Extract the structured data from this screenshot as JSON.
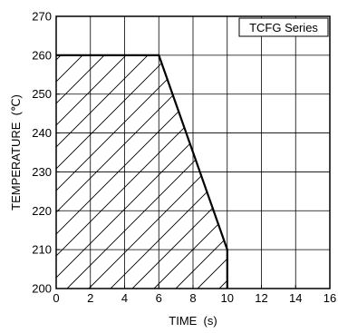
{
  "chart_data": {
    "type": "area",
    "title": "",
    "legend_label": "TCFG Series",
    "legend_position": "top-right",
    "xlabel": "TIME  (s)",
    "ylabel": "TEMPERATURE  (℃)",
    "xlim": [
      0,
      16
    ],
    "ylim": [
      200,
      270
    ],
    "xticks": [
      0,
      2,
      4,
      6,
      8,
      10,
      12,
      14,
      16
    ],
    "yticks": [
      200,
      210,
      220,
      230,
      240,
      250,
      260,
      270
    ],
    "xgrid_step": 2,
    "ygrid_step": 10,
    "grid": true,
    "series": [
      {
        "name": "TCFG Series",
        "x": [
          0,
          6,
          10,
          10
        ],
        "y": [
          260,
          260,
          210,
          200
        ],
        "fill": "hatched"
      }
    ]
  }
}
